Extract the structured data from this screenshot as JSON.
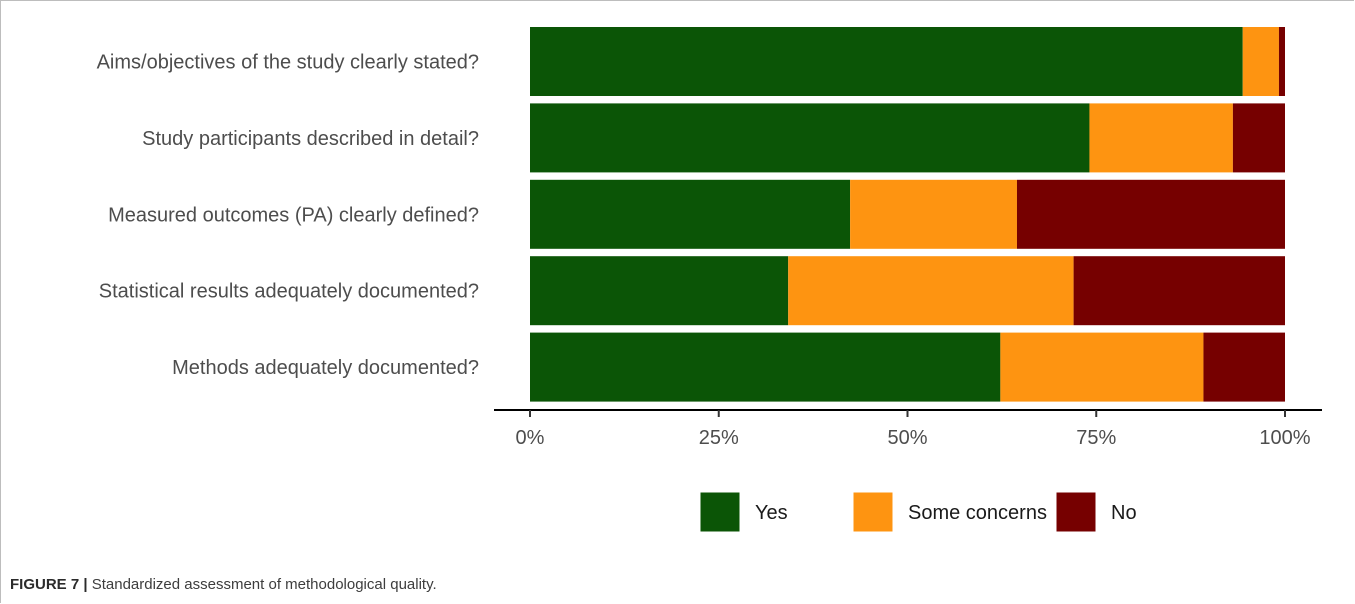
{
  "chart_data": {
    "type": "bar",
    "orientation": "horizontal",
    "stacked": true,
    "percent": true,
    "categories": [
      "Aims/objectives of the study clearly stated?",
      "Study participants described in detail?",
      "Measured outcomes (PA) clearly defined?",
      "Statistical results adequately documented?",
      "Methods adequately documented?"
    ],
    "series": [
      {
        "name": "Yes",
        "color": "#0b5506",
        "values": [
          94.4,
          74.1,
          42.4,
          34.2,
          62.3
        ]
      },
      {
        "name": "Some concerns",
        "color": "#fe9411",
        "values": [
          4.8,
          19.0,
          22.1,
          37.8,
          26.9
        ]
      },
      {
        "name": "No",
        "color": "#760000",
        "values": [
          0.8,
          6.9,
          35.5,
          28.0,
          10.8
        ]
      }
    ],
    "xlim": [
      0,
      100
    ],
    "ticks": [
      "0%",
      "25%",
      "50%",
      "75%",
      "100%"
    ],
    "legend_position": "bottom",
    "grid": false
  },
  "caption": {
    "label": "FIGURE 7 |",
    "text": "Standardized assessment of methodological quality."
  }
}
